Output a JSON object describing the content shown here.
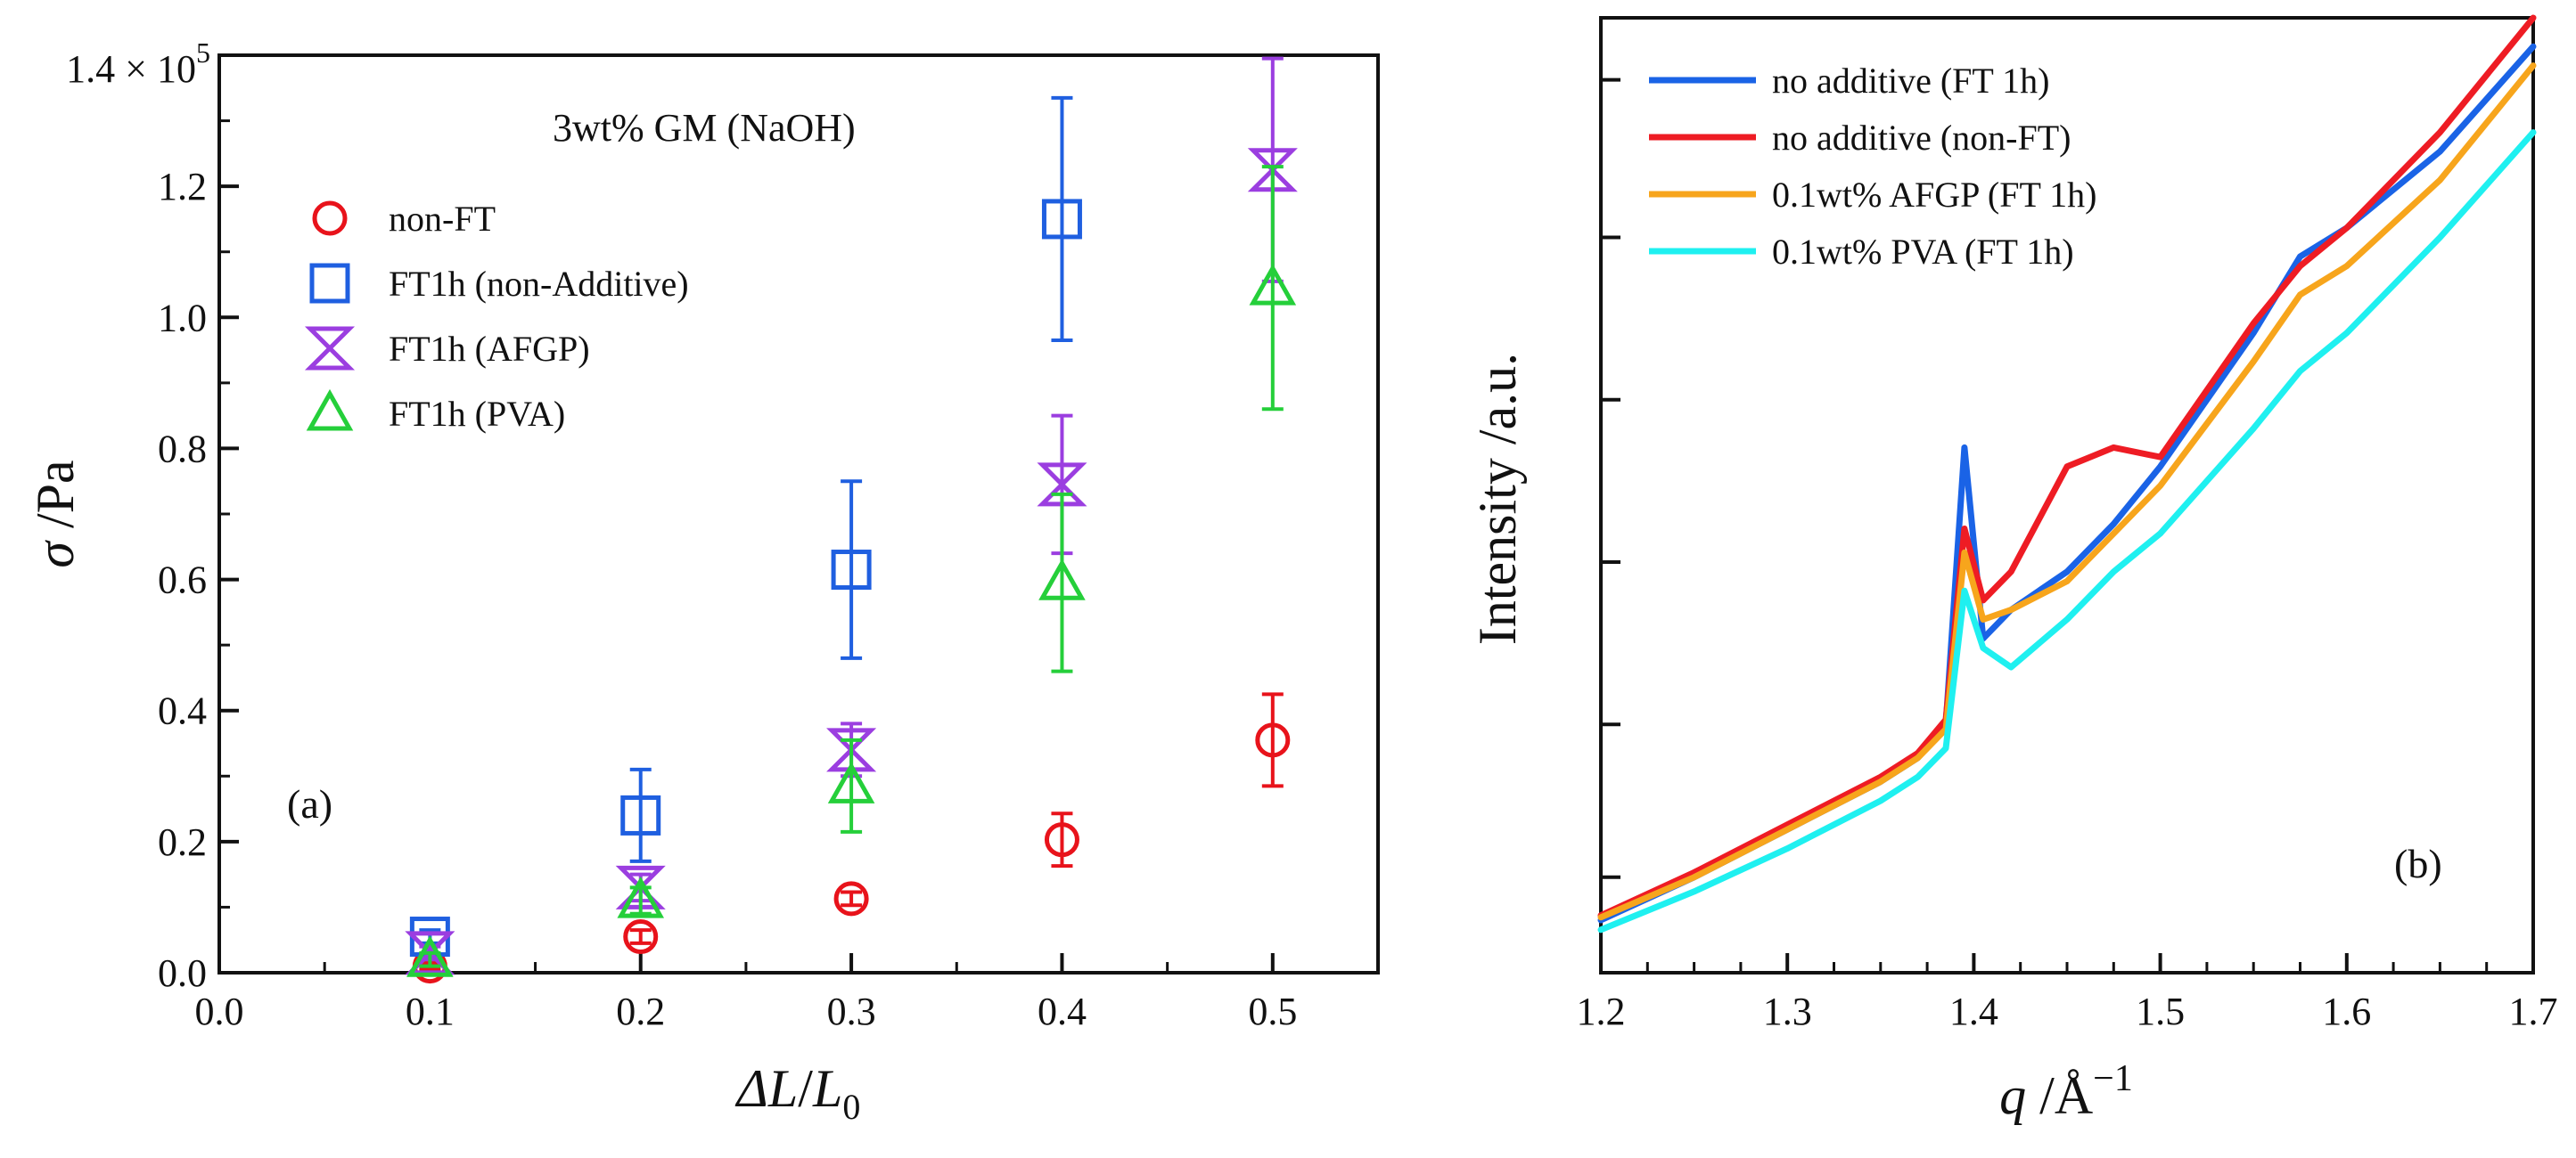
{
  "chart_data": [
    {
      "panel": "a",
      "type": "scatter",
      "title": "",
      "annotation": "3wt% GM (NaOH)",
      "panel_label": "(a)",
      "xlabel_parts": [
        "ΔL",
        "/",
        "L",
        "0"
      ],
      "ylabel_parts": [
        "σ",
        " /Pa"
      ],
      "xlim": [
        0.0,
        0.55
      ],
      "ylim": [
        0.0,
        1.4
      ],
      "y_multiplier": "× 10",
      "y_multiplier_exp": "5",
      "x_ticks": [
        "0.0",
        "0.1",
        "0.2",
        "0.3",
        "0.4",
        "0.5"
      ],
      "y_ticks": [
        "0.0",
        "0.2",
        "0.4",
        "0.6",
        "0.8",
        "1.0",
        "1.2",
        "1.4"
      ],
      "x": [
        0.1,
        0.2,
        0.3,
        0.4,
        0.5
      ],
      "legend": [
        "non-FT",
        "FT1h (non-Additive)",
        "FT1h (AFGP)",
        "FT1h (PVA)"
      ],
      "series": [
        {
          "name": "non-FT",
          "marker": "circle",
          "color": "#e8131b",
          "values": [
            0.01,
            0.055,
            0.113,
            0.203,
            0.355
          ],
          "errors": [
            0.005,
            0.01,
            0.01,
            0.04,
            0.07
          ]
        },
        {
          "name": "FT1h (non-Additive)",
          "marker": "square",
          "color": "#1f5fe0",
          "values": [
            0.055,
            0.24,
            0.615,
            1.15,
            null
          ],
          "errors": [
            0.01,
            0.07,
            0.135,
            0.185,
            null
          ]
        },
        {
          "name": "FT1h (AFGP)",
          "marker": "hourglass",
          "color": "#9b3ee0",
          "values": [
            0.03,
            0.13,
            0.34,
            0.745,
            1.225
          ],
          "errors": [
            0.01,
            0.02,
            0.04,
            0.105,
            0.17
          ]
        },
        {
          "name": "FT1h (PVA)",
          "marker": "triangle",
          "color": "#25cf3a",
          "values": [
            0.02,
            0.11,
            0.285,
            0.595,
            1.045
          ],
          "errors": [
            0.01,
            0.02,
            0.07,
            0.135,
            0.185
          ]
        }
      ]
    },
    {
      "panel": "b",
      "type": "line",
      "title": "",
      "panel_label": "(b)",
      "xlabel_parts": [
        "q",
        " /Å",
        "−1"
      ],
      "ylabel": "Intensity /a.u.",
      "xlim": [
        1.2,
        1.7
      ],
      "ylim": [
        0,
        1
      ],
      "x_ticks": [
        "1.2",
        "1.3",
        "1.4",
        "1.5",
        "1.6",
        "1.7"
      ],
      "y_tick_positions": [
        0.1,
        0.26,
        0.43,
        0.6,
        0.77,
        0.935
      ],
      "legend": [
        "no additive (FT 1h)",
        "no additive (non-FT)",
        "0.1wt% AFGP (FT 1h)",
        "0.1wt% PVA (FT 1h)"
      ],
      "x": [
        1.2,
        1.25,
        1.3,
        1.35,
        1.37,
        1.385,
        1.395,
        1.405,
        1.42,
        1.45,
        1.475,
        1.5,
        1.55,
        1.575,
        1.6,
        1.65,
        1.7
      ],
      "series": [
        {
          "name": "no additive (FT 1h)",
          "color": "#1a63e6",
          "values": [
            0.055,
            0.1,
            0.15,
            0.2,
            0.225,
            0.26,
            0.55,
            0.35,
            0.38,
            0.42,
            0.47,
            0.53,
            0.67,
            0.75,
            0.78,
            0.86,
            0.97
          ]
        },
        {
          "name": "no additive (non-FT)",
          "color": "#ee1c24",
          "values": [
            0.06,
            0.105,
            0.155,
            0.205,
            0.23,
            0.265,
            0.465,
            0.39,
            0.42,
            0.53,
            0.55,
            0.54,
            0.68,
            0.74,
            0.78,
            0.88,
            1.0
          ]
        },
        {
          "name": "0.1wt% AFGP (FT 1h)",
          "color": "#f7a51c",
          "values": [
            0.058,
            0.1,
            0.15,
            0.2,
            0.225,
            0.255,
            0.44,
            0.37,
            0.38,
            0.41,
            0.46,
            0.51,
            0.64,
            0.71,
            0.74,
            0.83,
            0.95
          ]
        },
        {
          "name": "0.1wt% PVA (FT 1h)",
          "color": "#1ff0f0",
          "values": [
            0.045,
            0.085,
            0.13,
            0.18,
            0.205,
            0.235,
            0.4,
            0.34,
            0.32,
            0.37,
            0.42,
            0.46,
            0.57,
            0.63,
            0.67,
            0.77,
            0.88
          ]
        }
      ]
    }
  ]
}
